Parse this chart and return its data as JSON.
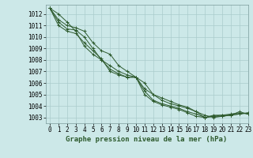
{
  "title": "Graphe pression niveau de la mer (hPa)",
  "bg_color": "#cce8e8",
  "grid_color": "#aacccc",
  "line_color": "#2d5a2d",
  "marker": "+",
  "xlim": [
    -0.5,
    23
  ],
  "ylim": [
    1002.5,
    1012.8
  ],
  "yticks": [
    1003,
    1004,
    1005,
    1006,
    1007,
    1008,
    1009,
    1010,
    1011,
    1012
  ],
  "xticks": [
    0,
    1,
    2,
    3,
    4,
    5,
    6,
    7,
    8,
    9,
    10,
    11,
    12,
    13,
    14,
    15,
    16,
    17,
    18,
    19,
    20,
    21,
    22,
    23
  ],
  "series": [
    [
      1012.5,
      1012.0,
      1011.3,
      1010.5,
      1009.2,
      1008.5,
      1008.0,
      1007.2,
      1006.8,
      1006.5,
      1006.5,
      1005.3,
      1004.5,
      1004.2,
      1004.0,
      1003.8,
      1003.5,
      1003.3,
      1003.0,
      1003.2,
      1003.2,
      1003.3,
      1003.4,
      1003.3
    ],
    [
      1012.5,
      1011.0,
      1010.5,
      1010.3,
      1009.5,
      1008.8,
      1008.1,
      1007.0,
      1006.7,
      1006.5,
      1006.5,
      1005.5,
      1005.0,
      1004.7,
      1004.4,
      1004.1,
      1003.9,
      1003.5,
      1003.0,
      1003.1,
      1003.2,
      1003.2,
      1003.5,
      1003.3
    ],
    [
      1012.5,
      1011.3,
      1010.7,
      1010.6,
      1010.0,
      1009.0,
      1008.0,
      1007.5,
      1007.0,
      1006.7,
      1006.5,
      1005.0,
      1004.4,
      1004.1,
      1003.9,
      1003.7,
      1003.4,
      1003.1,
      1003.0,
      1003.1,
      1003.1,
      1003.2,
      1003.3,
      1003.4
    ],
    [
      1012.5,
      1011.5,
      1011.0,
      1010.8,
      1010.5,
      1009.5,
      1008.8,
      1008.5,
      1007.5,
      1007.0,
      1006.5,
      1006.0,
      1005.0,
      1004.5,
      1004.2,
      1004.0,
      1003.8,
      1003.5,
      1003.2,
      1003.0,
      1003.1,
      1003.2,
      1003.3,
      1003.4
    ]
  ],
  "tick_fontsize": 5.5,
  "label_fontsize": 6.5
}
